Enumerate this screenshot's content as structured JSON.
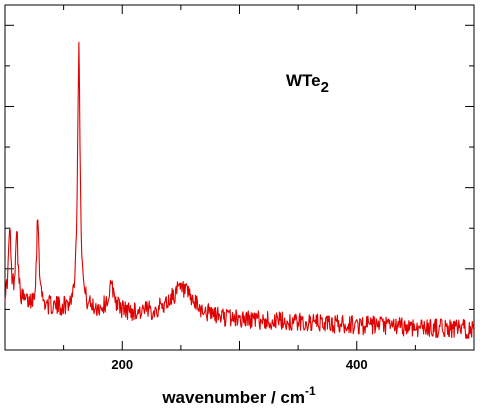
{
  "chart_data": {
    "type": "line",
    "title": "",
    "xlabel": "wavenumber / cm",
    "xlabel_superscript": "-1",
    "ylabel": "",
    "xlim": [
      100,
      500
    ],
    "ylim": [
      0,
      1
    ],
    "xticks": [
      200,
      400
    ],
    "annotation": {
      "base": "WTe",
      "subscript": "2"
    },
    "grid": false,
    "legend": "none",
    "series": [
      {
        "name": "",
        "color": "#e00000",
        "peaks": [
          {
            "center": 104,
            "height": 0.2,
            "width": 1.2
          },
          {
            "center": 110,
            "height": 0.22,
            "width": 1.2
          },
          {
            "center": 128,
            "height": 0.26,
            "width": 1.3
          },
          {
            "center": 163,
            "height": 0.75,
            "width": 1.4
          },
          {
            "center": 191,
            "height": 0.07,
            "width": 3.5
          },
          {
            "center": 250,
            "height": 0.08,
            "width": 12
          }
        ],
        "baseline": {
          "start": 0.15,
          "end": 0.06,
          "noise": 0.028
        }
      }
    ]
  }
}
